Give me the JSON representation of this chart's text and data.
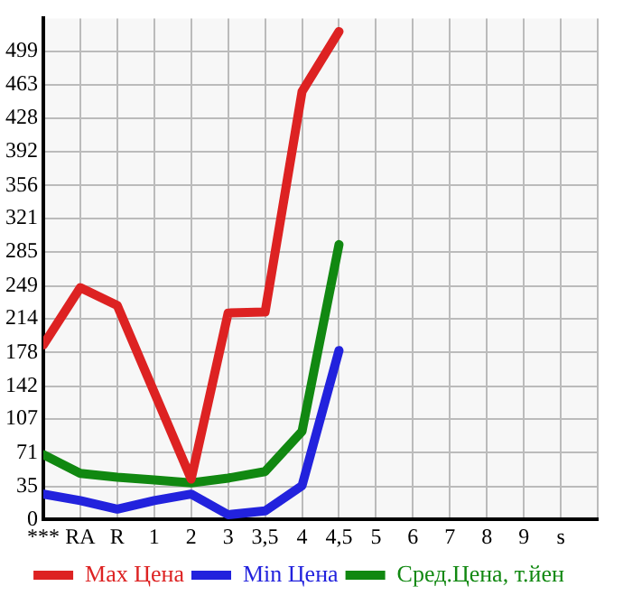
{
  "chart_data": {
    "type": "line",
    "categories": [
      "***",
      "RA",
      "R",
      "1",
      "2",
      "3",
      "3,5",
      "4",
      "4,5",
      "5",
      "6",
      "7",
      "8",
      "9",
      "s"
    ],
    "series": [
      {
        "name": "Max Цена",
        "color": "#dd2222",
        "values": [
          186,
          247,
          228,
          null,
          43,
          220,
          221,
          456,
          520,
          null,
          null,
          null,
          null,
          null,
          null
        ]
      },
      {
        "name": "Min Цена",
        "color": "#2222dd",
        "values": [
          27,
          20,
          11,
          20,
          27,
          5,
          9,
          36,
          180,
          null,
          null,
          null,
          null,
          null,
          null
        ]
      },
      {
        "name": "Сред.Цена, т.йен",
        "color": "#118811",
        "values": [
          69,
          49,
          45,
          42,
          39,
          44,
          51,
          94,
          293,
          null,
          null,
          null,
          null,
          null,
          null
        ]
      }
    ],
    "ylim": [
      0,
      534
    ],
    "yticks": [
      0,
      35,
      71,
      107,
      142,
      178,
      214,
      249,
      285,
      321,
      356,
      392,
      428,
      463,
      499
    ],
    "grid": true,
    "legend": "bottom",
    "marker": "none",
    "line_style": "solid"
  }
}
